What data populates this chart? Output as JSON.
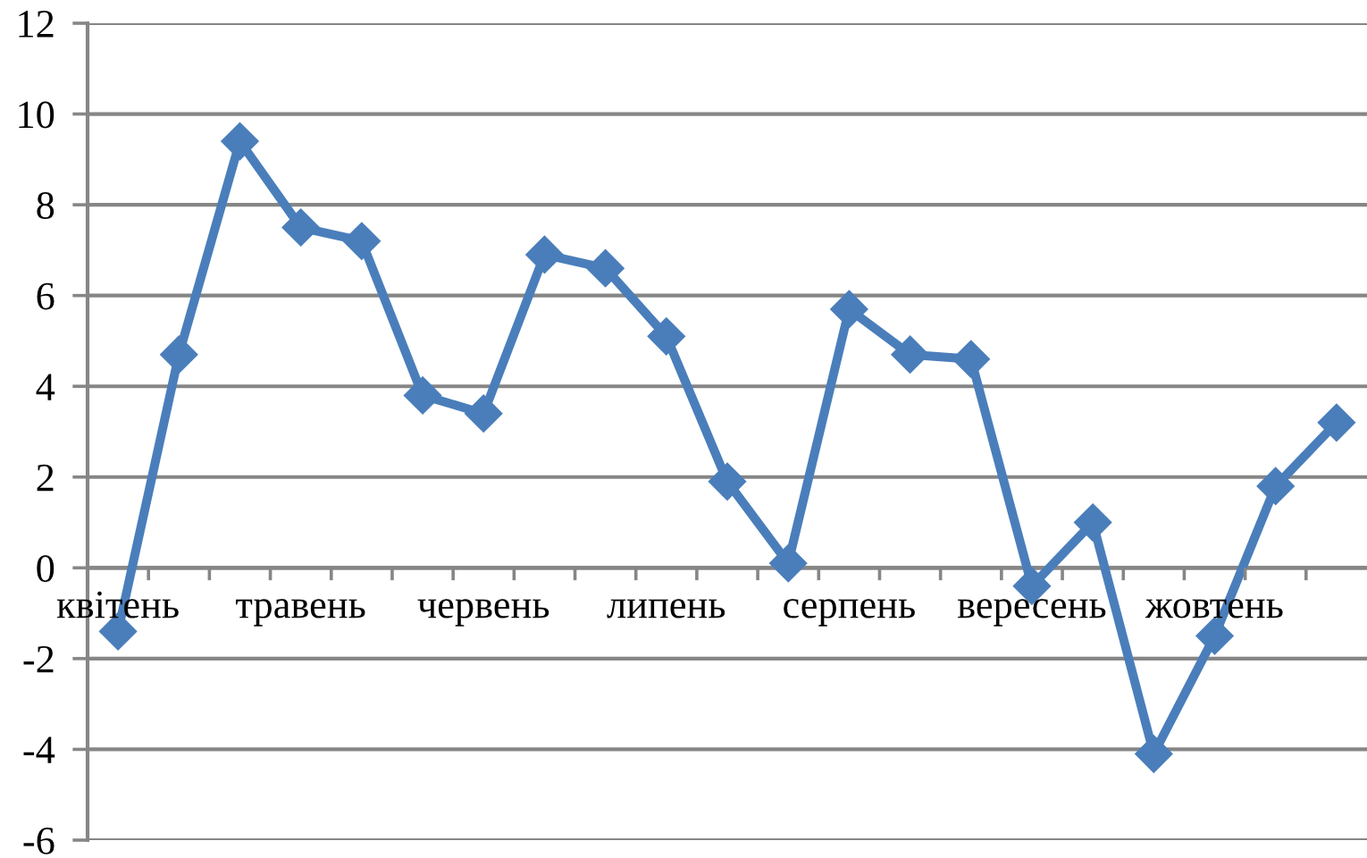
{
  "chart_data": {
    "type": "line",
    "categories": [
      "квітень",
      null,
      null,
      "травень",
      null,
      null,
      "червень",
      null,
      null,
      "липень",
      null,
      null,
      "серпень",
      null,
      null,
      "вересень",
      null,
      null,
      "жовтень",
      null,
      null
    ],
    "series": [
      {
        "color": "#4a7ebb",
        "values": [
          -1.4,
          4.7,
          9.4,
          7.5,
          7.2,
          3.8,
          3.4,
          6.9,
          6.6,
          5.1,
          1.9,
          0.1,
          5.7,
          4.7,
          4.6,
          -0.4,
          1.0,
          -4.1,
          -1.5,
          1.8,
          3.2
        ]
      }
    ],
    "ylim": [
      -6,
      12
    ],
    "yticks": [
      -6,
      -4,
      -2,
      0,
      2,
      4,
      6,
      8,
      10,
      12
    ],
    "grid": "y",
    "marker": "diamond",
    "line_style": "solid"
  }
}
